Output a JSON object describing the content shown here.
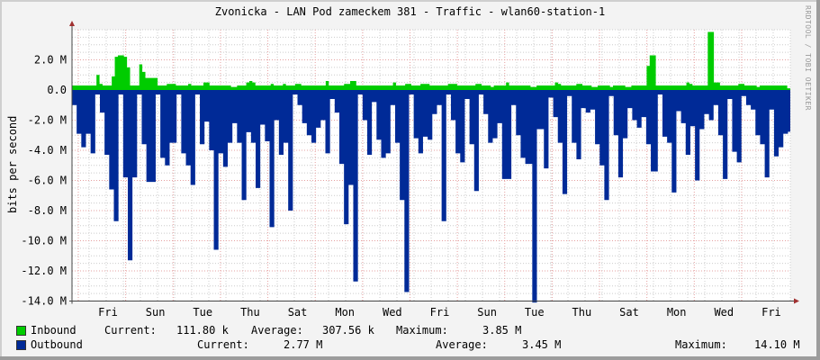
{
  "title": "Zvonicka - LAN Pod zameckem 381 - Traffic - wlan60-station-1",
  "watermark": "RRDTOOL / TOBI OETIKER",
  "colors": {
    "inbound": "#00cc00",
    "outbound": "#002a97",
    "grid_major": "#e5a0a0",
    "grid_minor": "#cccccc",
    "background": "#f3f3f3",
    "canvas": "#ffffff"
  },
  "legend": {
    "inbound": {
      "label": "Inbound",
      "current_label": "Current:",
      "current": "111.80 k",
      "average_label": "Average:",
      "average": "307.56 k",
      "maximum_label": "Maximum:",
      "maximum": "3.85 M"
    },
    "outbound": {
      "label": "Outbound",
      "current_label": "Current:",
      "current": "2.77 M",
      "average_label": "Average:",
      "average": "3.45 M",
      "maximum_label": "Maximum:",
      "maximum": "14.10 M"
    }
  },
  "chart_data": {
    "type": "area",
    "title": "Zvonicka - LAN Pod zameckem 381 - Traffic - wlan60-station-1",
    "xlabel": "",
    "ylabel": "bits per second",
    "ylim": [
      -14000000,
      4000000
    ],
    "yticks": [
      "2.0 M",
      "0.0",
      "-2.0 M",
      "-4.0 M",
      "-6.0 M",
      "-8.0 M",
      "-10.0 M",
      "-12.0 M",
      "-14.0 M"
    ],
    "ytick_values": [
      2,
      0,
      -2,
      -4,
      -6,
      -8,
      -10,
      -12,
      -14
    ],
    "xticks": [
      "Fri",
      "Sun",
      "Tue",
      "Thu",
      "Sat",
      "Mon",
      "Wed",
      "Fri",
      "Sun",
      "Tue",
      "Thu",
      "Sat",
      "Mon",
      "Wed",
      "Fri"
    ],
    "grid": true,
    "legend_position": "bottom",
    "units": "M bits per second",
    "series": [
      {
        "name": "Inbound",
        "color": "#00cc00",
        "values": [
          0.3,
          0.3,
          0.3,
          0.3,
          0.3,
          0.3,
          0.3,
          0.3,
          1.0,
          0.4,
          0.3,
          0.3,
          0.3,
          0.9,
          2.2,
          2.3,
          2.3,
          2.2,
          1.5,
          0.3,
          0.3,
          0.3,
          1.7,
          1.2,
          0.8,
          0.8,
          0.8,
          0.8,
          0.3,
          0.3,
          0.3,
          0.4,
          0.4,
          0.4,
          0.3,
          0.3,
          0.3,
          0.3,
          0.4,
          0.3,
          0.3,
          0.3,
          0.3,
          0.5,
          0.5,
          0.3,
          0.3,
          0.3,
          0.3,
          0.3,
          0.3,
          0.3,
          0.2,
          0.2,
          0.3,
          0.3,
          0.3,
          0.5,
          0.6,
          0.5,
          0.3,
          0.3,
          0.3,
          0.3,
          0.3,
          0.4,
          0.3,
          0.3,
          0.3,
          0.4,
          0.3,
          0.3,
          0.3,
          0.4,
          0.4,
          0.3,
          0.3,
          0.3,
          0.3,
          0.3,
          0.3,
          0.3,
          0.3,
          0.6,
          0.3,
          0.3,
          0.3,
          0.3,
          0.3,
          0.4,
          0.4,
          0.6,
          0.6,
          0.3,
          0.3,
          0.3,
          0.3,
          0.3,
          0.3,
          0.3,
          0.3,
          0.3,
          0.3,
          0.3,
          0.3,
          0.5,
          0.3,
          0.3,
          0.3,
          0.4,
          0.4,
          0.3,
          0.3,
          0.3,
          0.4,
          0.4,
          0.4,
          0.3,
          0.3,
          0.3,
          0.3,
          0.3,
          0.3,
          0.4,
          0.4,
          0.4,
          0.3,
          0.3,
          0.3,
          0.3,
          0.3,
          0.3,
          0.4,
          0.4,
          0.3,
          0.3,
          0.3,
          0.2,
          0.3,
          0.3,
          0.3,
          0.3,
          0.5,
          0.3,
          0.3,
          0.3,
          0.3,
          0.3,
          0.3,
          0.3,
          0.2,
          0.2,
          0.3,
          0.3,
          0.3,
          0.3,
          0.3,
          0.3,
          0.5,
          0.4,
          0.3,
          0.3,
          0.3,
          0.3,
          0.3,
          0.4,
          0.4,
          0.3,
          0.3,
          0.3,
          0.2,
          0.2,
          0.3,
          0.3,
          0.3,
          0.3,
          0.2,
          0.3,
          0.3,
          0.3,
          0.3,
          0.2,
          0.2,
          0.3,
          0.3,
          0.3,
          0.3,
          0.3,
          1.6,
          2.3,
          2.3,
          0.3,
          0.3,
          0.3,
          0.3,
          0.3,
          0.3,
          0.3,
          0.3,
          0.3,
          0.3,
          0.5,
          0.4,
          0.3,
          0.3,
          0.3,
          0.3,
          0.3,
          3.85,
          3.85,
          0.5,
          0.5,
          0.3,
          0.3,
          0.3,
          0.3,
          0.3,
          0.3,
          0.4,
          0.4,
          0.3,
          0.3,
          0.3,
          0.3,
          0.2,
          0.3,
          0.3,
          0.3,
          0.3,
          0.3,
          0.3,
          0.3,
          0.3,
          0.3,
          0.11
        ]
      },
      {
        "name": "Outbound",
        "color": "#002a97",
        "values": [
          1.0,
          1.0,
          2.9,
          2.9,
          3.8,
          3.8,
          2.9,
          2.9,
          4.2,
          4.2,
          0.3,
          0.3,
          1.5,
          1.5,
          4.3,
          4.3,
          6.6,
          6.6,
          8.7,
          8.7,
          0.3,
          0.3,
          5.8,
          5.8,
          11.3,
          11.3,
          5.8,
          5.8,
          0.3,
          0.3,
          3.6,
          3.6,
          6.1,
          6.1,
          6.1,
          6.1,
          0.3,
          0.3,
          4.5,
          4.5,
          5.0,
          5.0,
          3.5,
          3.5,
          3.5,
          0.3,
          0.3,
          4.2,
          4.2,
          5.0,
          5.0,
          6.3,
          6.3,
          0.3,
          0.3,
          3.6,
          3.6,
          2.1,
          2.1,
          4.0,
          4.0,
          10.6,
          10.6,
          4.2,
          4.2,
          5.1,
          5.1,
          3.5,
          3.5,
          2.2,
          2.2,
          3.5,
          3.5,
          7.3,
          7.3,
          2.8,
          2.8,
          3.5,
          3.5,
          6.5,
          6.5,
          2.3,
          2.3,
          3.4,
          3.4,
          9.1,
          9.1,
          2.0,
          2.0,
          4.3,
          4.3,
          3.5,
          3.5,
          8.0,
          8.0,
          0.3,
          0.3,
          1.0,
          1.0,
          2.2,
          2.2,
          3.0,
          3.0,
          3.5,
          3.5,
          2.5,
          2.5,
          2.0,
          2.0,
          4.2,
          4.2,
          0.6,
          0.6,
          1.5,
          1.5,
          4.9,
          4.9,
          8.9,
          8.9,
          6.3,
          6.3,
          12.7,
          12.7,
          0.3,
          0.3,
          2.0,
          2.0,
          4.3,
          4.3,
          0.8,
          0.8,
          3.3,
          3.3,
          4.5,
          4.5,
          4.2,
          4.2,
          1.0,
          1.0,
          3.5,
          3.5,
          7.3,
          7.3,
          13.4,
          13.4,
          0.3,
          0.3,
          3.2,
          3.2,
          4.2,
          4.2,
          3.1,
          3.1,
          3.3,
          3.3,
          1.6,
          1.6,
          1.0,
          1.0,
          8.7,
          8.7,
          0.3,
          0.3,
          2.0,
          2.0,
          4.2,
          4.2,
          4.8,
          4.8,
          0.6,
          0.6,
          3.6,
          3.6,
          6.7,
          6.7,
          0.3,
          0.3,
          1.6,
          1.6,
          3.5,
          3.5,
          3.2,
          3.2,
          2.2,
          2.2,
          5.9,
          5.9,
          5.9,
          5.9,
          1.0,
          1.0,
          3.0,
          3.0,
          4.5,
          4.5,
          4.9,
          4.9,
          4.9,
          14.1,
          14.1,
          2.6,
          2.6,
          2.6,
          5.2,
          5.2,
          0.5,
          0.5,
          1.8,
          1.8,
          3.5,
          3.5,
          6.9,
          6.9,
          0.4,
          0.4,
          3.5,
          3.5,
          4.6,
          4.6,
          1.2,
          1.2,
          1.5,
          1.5,
          1.3,
          1.3,
          3.6,
          3.6,
          5.0,
          5.0,
          7.3,
          7.3,
          0.4,
          0.4,
          3.0,
          3.0,
          5.8,
          5.8,
          3.2,
          3.2,
          1.2,
          1.2,
          2.0,
          2.0,
          2.5,
          2.5,
          1.8,
          1.8,
          3.6,
          3.6,
          5.4,
          5.4,
          5.4,
          0.3,
          0.3,
          3.1,
          3.1,
          3.5,
          3.5,
          6.8,
          6.8,
          1.4,
          1.4,
          2.2,
          2.2,
          4.3,
          4.3,
          2.4,
          2.4,
          6.0,
          6.0,
          2.6,
          2.6,
          1.6,
          1.6,
          2.0,
          2.0,
          1.0,
          1.0,
          3.0,
          3.0,
          5.9,
          5.9,
          0.6,
          0.6,
          4.1,
          4.1,
          4.8,
          4.8,
          0.4,
          0.4,
          1.0,
          1.0,
          1.3,
          1.3,
          3.0,
          3.0,
          3.6,
          3.6,
          5.8,
          5.8,
          1.3,
          1.3,
          4.4,
          4.4,
          3.8,
          3.8,
          2.9,
          2.9,
          2.77
        ]
      }
    ]
  }
}
